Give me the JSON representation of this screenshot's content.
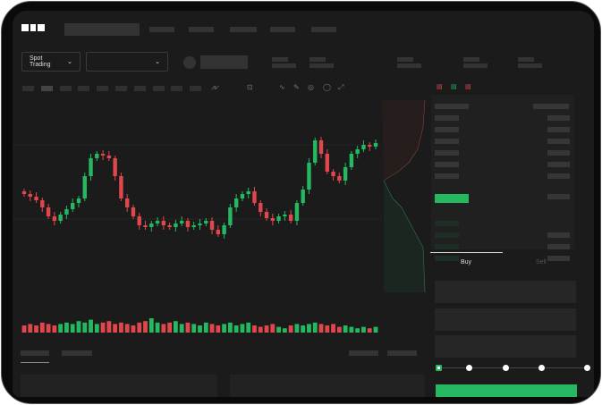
{
  "brand": {
    "logo": "OKX"
  },
  "nav": {
    "market_selector": "Spot Trading"
  },
  "trade": {
    "tabs": [
      {
        "label": "Buy",
        "active": true
      },
      {
        "label": "Sell",
        "active": false
      }
    ],
    "leverage_steps": 5,
    "selected_step": 0
  },
  "colors": {
    "up": "#25b860",
    "down": "#e0474c",
    "background": "#1b1b1b",
    "accent": "#25b860"
  },
  "icons": [
    "chevron-down-icon",
    "line-chart-icon",
    "pencil-icon",
    "settings-icon",
    "fullscreen-icon",
    "orderbook-both-icon",
    "orderbook-buy-icon",
    "orderbook-sell-icon"
  ],
  "chart_data": {
    "type": "candlestick",
    "closes": [
      95,
      92,
      88,
      80,
      70,
      65,
      72,
      78,
      85,
      90,
      115,
      135,
      140,
      138,
      135,
      115,
      90,
      80,
      70,
      60,
      58,
      62,
      65,
      60,
      58,
      62,
      65,
      58,
      60,
      62,
      65,
      55,
      50,
      60,
      80,
      90,
      95,
      98,
      85,
      75,
      68,
      65,
      70,
      72,
      65,
      85,
      100,
      130,
      155,
      140,
      120,
      115,
      110,
      125,
      140,
      145,
      150,
      148,
      152
    ],
    "volumes": [
      5,
      6,
      5,
      7,
      6,
      5,
      6,
      7,
      6,
      8,
      7,
      9,
      6,
      7,
      8,
      6,
      7,
      6,
      5,
      7,
      8,
      10,
      7,
      6,
      7,
      8,
      6,
      7,
      6,
      5,
      7,
      6,
      5,
      6,
      7,
      5,
      6,
      7,
      5,
      4,
      5,
      6,
      4,
      3,
      5,
      6,
      5,
      6,
      7,
      6,
      5,
      6,
      4,
      5,
      4,
      3,
      4,
      3,
      4
    ]
  }
}
